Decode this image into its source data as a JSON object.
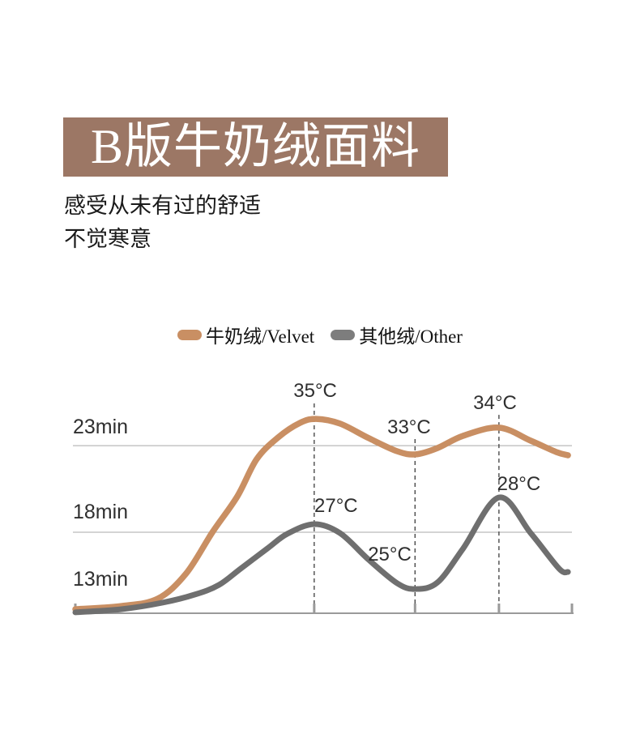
{
  "header": {
    "title": "B版牛奶绒面料",
    "subtitle_line1": "感受从未有过的舒适",
    "subtitle_line2": "不觉寒意"
  },
  "legend": {
    "items": [
      {
        "label": "牛奶绒/Velvet",
        "color": "#c98f63"
      },
      {
        "label": "其他绒/Other",
        "color": "#7d7d7d"
      }
    ]
  },
  "chart_data": {
    "type": "line",
    "title": "",
    "xlabel": "",
    "ylabel": "",
    "x_axis": {
      "ticks_pct": [
        0,
        48.1,
        68.4,
        85.3,
        100
      ]
    },
    "y_axis": {
      "labels": [
        {
          "text": "23min",
          "baseline_pct": 80.1
        },
        {
          "text": "18min",
          "baseline_pct": 42.2
        },
        {
          "text": "13min",
          "baseline_pct": 12.3
        }
      ],
      "gridlines_pct": [
        74.7,
        36.1
      ]
    },
    "series": [
      {
        "name": "牛奶绒/Velvet",
        "color": "#c98f63",
        "stroke_width": 7.5,
        "points_pct": [
          [
            0,
            1.8
          ],
          [
            9.3,
            3.2
          ],
          [
            16.6,
            6.5
          ],
          [
            22.3,
            17.7
          ],
          [
            27.6,
            36.1
          ],
          [
            32.6,
            52
          ],
          [
            36.5,
            68.6
          ],
          [
            40.8,
            78.3
          ],
          [
            45.2,
            84.8
          ],
          [
            48.5,
            86.6
          ],
          [
            53.3,
            84.5
          ],
          [
            59.1,
            78
          ],
          [
            64.8,
            72.2
          ],
          [
            68.5,
            70.8
          ],
          [
            72.9,
            73.6
          ],
          [
            78.1,
            79.1
          ],
          [
            85.3,
            82.7
          ],
          [
            91.7,
            76.9
          ],
          [
            96.9,
            71.8
          ],
          [
            99.2,
            70.4
          ]
        ]
      },
      {
        "name": "其他绒/Other",
        "color": "#6f6f6f",
        "stroke_width": 7,
        "points_pct": [
          [
            0,
            0.4
          ],
          [
            9.3,
            1.8
          ],
          [
            17.5,
            4.7
          ],
          [
            24,
            8.3
          ],
          [
            28.9,
            12.6
          ],
          [
            33.3,
            19.9
          ],
          [
            38.7,
            28.9
          ],
          [
            42.7,
            35.4
          ],
          [
            48.1,
            39.7
          ],
          [
            53.3,
            35.7
          ],
          [
            59.1,
            23.8
          ],
          [
            64.8,
            13.4
          ],
          [
            68.4,
            10.8
          ],
          [
            72.9,
            13.7
          ],
          [
            78.1,
            28.9
          ],
          [
            85.3,
            51.6
          ],
          [
            91.7,
            35.7
          ],
          [
            97.4,
            19.9
          ],
          [
            99.2,
            18.4
          ]
        ]
      }
    ],
    "annotations": [
      {
        "text": "35°C",
        "x_pct": 48.3,
        "baseline_pct": 96.4
      },
      {
        "text": "33°C",
        "x_pct": 67.2,
        "baseline_pct": 80.1
      },
      {
        "text": "34°C",
        "x_pct": 84.5,
        "baseline_pct": 91.0
      },
      {
        "text": "27°C",
        "x_pct": 52.5,
        "baseline_pct": 45.1
      },
      {
        "text": "25°C",
        "x_pct": 63.3,
        "baseline_pct": 23.5
      },
      {
        "text": "28°C",
        "x_pct": 89.3,
        "baseline_pct": 54.9
      }
    ],
    "dashed_lines": [
      {
        "x_pct": 48.1,
        "top_pct": 93.5
      },
      {
        "x_pct": 68.4,
        "top_pct": 77.6
      },
      {
        "x_pct": 85.3,
        "top_pct": 88.4
      }
    ],
    "colors": {
      "grid": "#a8a8a8",
      "axis": "#9a9a9a",
      "dash": "#3c3c3c",
      "text": "#2f2f2f"
    }
  }
}
